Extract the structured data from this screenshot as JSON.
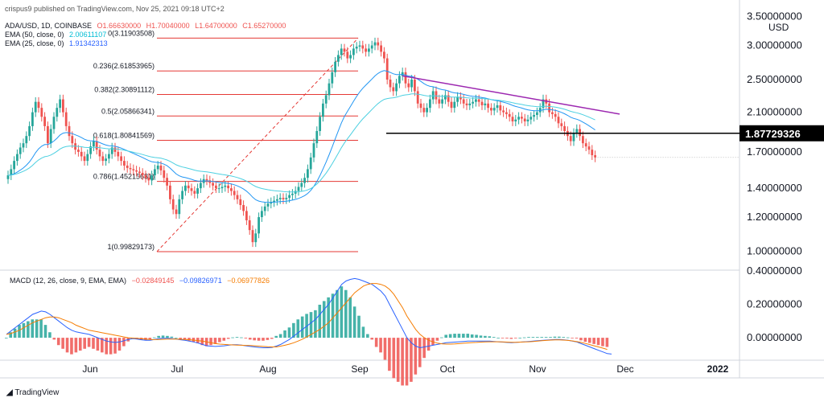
{
  "header": {
    "published": "crispus9 published on TradingView.com, Nov 25, 2021 09:18 UTC+2",
    "symbol": "ADA/USD, 1D, COINBASE",
    "ohlc": {
      "o": "O1.66630000",
      "h": "H1.70040000",
      "l": "L1.64700000",
      "c": "C1.65270000"
    },
    "ema50": {
      "label": "EMA (50, close, 0)",
      "value": "2.00611107"
    },
    "ema25": {
      "label": "EMA (25, close, 0)",
      "value": "1.91342313"
    },
    "macd": {
      "label": "MACD (12, 26, close, 9, EMA, EMA)",
      "hist": "−0.02849145",
      "macd": "−0.09826971",
      "signal": "−0.06977826"
    }
  },
  "footer": {
    "brand": "TradingView"
  },
  "colors": {
    "up": "#26a69a",
    "down": "#ef5350",
    "fib": "#e53935",
    "ema25": "#2196f3",
    "ema50": "#4dd0e1",
    "trend": "#9c27b0",
    "macd": "#2962ff",
    "signal": "#f57c00",
    "hist_up": "#26a69a",
    "hist_down": "#ef5350"
  },
  "chart_data": {
    "type": "candlestick",
    "currency_label": "USD",
    "price_axis": {
      "ticks": [
        "3.50000000",
        "3.00000000",
        "2.50000000",
        "2.10000000",
        "1.70000000",
        "1.40000000",
        "1.20000000",
        "1.00000000"
      ],
      "scale": "log",
      "range": [
        0.92,
        3.6
      ],
      "highlight": "1.87729326"
    },
    "time_axis": {
      "ticks": [
        "Jun",
        "Jul",
        "Aug",
        "Sep",
        "Oct",
        "Nov",
        "Dec",
        "2022"
      ]
    },
    "fibonacci": [
      {
        "label": "0(3.11903508)",
        "value": 3.11903508
      },
      {
        "label": "0.236(2.61853965)",
        "value": 2.61853965
      },
      {
        "label": "0.382(2.30891112)",
        "value": 2.30891112
      },
      {
        "label": "0.5(2.05866341)",
        "value": 2.05866341
      },
      {
        "label": "0.618(1.80841569)",
        "value": 1.80841569
      },
      {
        "label": "0.786(1.45215681)",
        "value": 1.45215681
      },
      {
        "label": "1(0.99829173)",
        "value": 0.99829173
      }
    ],
    "support_level": 1.87729326,
    "macd_axis": {
      "ticks": [
        "0.40000000",
        "0.20000000",
        "0.00000000"
      ],
      "range": [
        -0.12,
        0.41
      ]
    },
    "closes": [
      1.5,
      1.55,
      1.62,
      1.68,
      1.74,
      1.78,
      1.85,
      1.95,
      2.1,
      2.22,
      2.15,
      2.05,
      1.95,
      1.78,
      1.92,
      2.05,
      2.15,
      2.25,
      2.1,
      1.95,
      1.85,
      1.78,
      1.72,
      1.7,
      1.66,
      1.62,
      1.68,
      1.75,
      1.8,
      1.72,
      1.66,
      1.62,
      1.64,
      1.68,
      1.74,
      1.7,
      1.66,
      1.62,
      1.58,
      1.56,
      1.55,
      1.54,
      1.53,
      1.52,
      1.5,
      1.48,
      1.46,
      1.5,
      1.55,
      1.58,
      1.54,
      1.48,
      1.42,
      1.32,
      1.25,
      1.22,
      1.32,
      1.38,
      1.42,
      1.4,
      1.38,
      1.36,
      1.4,
      1.44,
      1.47,
      1.46,
      1.44,
      1.42,
      1.4,
      1.4,
      1.41,
      1.42,
      1.4,
      1.38,
      1.35,
      1.32,
      1.28,
      1.24,
      1.18,
      1.12,
      1.05,
      1.1,
      1.2,
      1.24,
      1.27,
      1.29,
      1.3,
      1.31,
      1.32,
      1.33,
      1.32,
      1.33,
      1.35,
      1.36,
      1.38,
      1.41,
      1.44,
      1.48,
      1.55,
      1.65,
      1.78,
      1.9,
      2.05,
      2.2,
      2.3,
      2.45,
      2.6,
      2.75,
      2.85,
      2.95,
      2.9,
      2.8,
      2.85,
      2.95,
      2.98,
      3.0,
      2.95,
      2.9,
      2.95,
      3.0,
      3.05,
      3.0,
      2.9,
      2.8,
      2.5,
      2.4,
      2.35,
      2.45,
      2.55,
      2.6,
      2.45,
      2.4,
      2.5,
      2.35,
      2.2,
      2.15,
      2.1,
      2.15,
      2.25,
      2.35,
      2.25,
      2.2,
      2.25,
      2.3,
      2.22,
      2.15,
      2.22,
      2.28,
      2.25,
      2.2,
      2.18,
      2.2,
      2.22,
      2.25,
      2.22,
      2.18,
      2.2,
      2.15,
      2.12,
      2.15,
      2.18,
      2.12,
      2.1,
      2.08,
      2.05,
      2.0,
      2.02,
      2.05,
      2.03,
      2.0,
      2.02,
      2.05,
      2.07,
      2.1,
      2.15,
      2.25,
      2.2,
      2.1,
      2.08,
      2.05,
      1.98,
      1.95,
      1.9,
      1.85,
      1.8,
      1.88,
      1.92,
      1.85,
      1.78,
      1.75,
      1.72,
      1.67,
      1.65
    ],
    "macd_values": [
      0.02,
      0.04,
      0.06,
      0.08,
      0.1,
      0.12,
      0.14,
      0.15,
      0.16,
      0.155,
      0.14,
      0.12,
      0.1,
      0.08,
      0.06,
      0.045,
      0.035,
      0.03,
      0.025,
      0.02,
      0.01,
      0.0,
      -0.01,
      -0.02,
      -0.025,
      -0.028,
      -0.025,
      -0.018,
      -0.01,
      -0.005,
      -0.008,
      -0.012,
      -0.015,
      -0.015,
      -0.01,
      -0.005,
      -0.003,
      -0.003,
      -0.005,
      -0.008,
      -0.012,
      -0.015,
      -0.02,
      -0.025,
      -0.032,
      -0.04,
      -0.048,
      -0.05,
      -0.052,
      -0.05,
      -0.048,
      -0.045,
      -0.042,
      -0.042,
      -0.044,
      -0.048,
      -0.052,
      -0.055,
      -0.058,
      -0.06,
      -0.06,
      -0.058,
      -0.05,
      -0.04,
      -0.025,
      -0.01,
      0.01,
      0.03,
      0.05,
      0.07,
      0.09,
      0.11,
      0.14,
      0.17,
      0.2,
      0.24,
      0.28,
      0.32,
      0.34,
      0.35,
      0.355,
      0.35,
      0.34,
      0.33,
      0.32,
      0.3,
      0.28,
      0.25,
      0.2,
      0.15,
      0.1,
      0.05,
      0.0,
      -0.03,
      -0.05,
      -0.06,
      -0.055,
      -0.05,
      -0.045,
      -0.04,
      -0.035,
      -0.03,
      -0.028,
      -0.026,
      -0.024,
      -0.022,
      -0.02,
      -0.02,
      -0.02,
      -0.02,
      -0.02,
      -0.02,
      -0.022,
      -0.024,
      -0.026,
      -0.028,
      -0.03,
      -0.028,
      -0.026,
      -0.024,
      -0.022,
      -0.02,
      -0.018,
      -0.016,
      -0.014,
      -0.012,
      -0.01,
      -0.01,
      -0.012,
      -0.015,
      -0.02,
      -0.025,
      -0.035,
      -0.045,
      -0.055,
      -0.065,
      -0.075,
      -0.085,
      -0.095,
      -0.098
    ],
    "signal_values": [
      0.02,
      0.025,
      0.035,
      0.045,
      0.06,
      0.075,
      0.09,
      0.1,
      0.11,
      0.12,
      0.125,
      0.125,
      0.12,
      0.11,
      0.1,
      0.09,
      0.075,
      0.065,
      0.055,
      0.045,
      0.04,
      0.035,
      0.03,
      0.025,
      0.02,
      0.015,
      0.01,
      0.005,
      0.0,
      -0.002,
      -0.004,
      -0.006,
      -0.008,
      -0.01,
      -0.011,
      -0.01,
      -0.009,
      -0.008,
      -0.008,
      -0.008,
      -0.009,
      -0.01,
      -0.012,
      -0.014,
      -0.017,
      -0.02,
      -0.025,
      -0.03,
      -0.035,
      -0.038,
      -0.04,
      -0.042,
      -0.043,
      -0.044,
      -0.045,
      -0.046,
      -0.047,
      -0.048,
      -0.05,
      -0.052,
      -0.054,
      -0.055,
      -0.055,
      -0.05,
      -0.045,
      -0.038,
      -0.03,
      -0.02,
      -0.008,
      0.005,
      0.02,
      0.035,
      0.05,
      0.07,
      0.09,
      0.12,
      0.15,
      0.18,
      0.21,
      0.24,
      0.27,
      0.29,
      0.31,
      0.32,
      0.325,
      0.325,
      0.32,
      0.31,
      0.29,
      0.26,
      0.22,
      0.18,
      0.13,
      0.09,
      0.05,
      0.02,
      0.0,
      -0.015,
      -0.025,
      -0.032,
      -0.036,
      -0.038,
      -0.038,
      -0.037,
      -0.035,
      -0.033,
      -0.031,
      -0.029,
      -0.028,
      -0.026,
      -0.025,
      -0.024,
      -0.024,
      -0.024,
      -0.025,
      -0.026,
      -0.027,
      -0.027,
      -0.026,
      -0.025,
      -0.024,
      -0.022,
      -0.02,
      -0.018,
      -0.016,
      -0.014,
      -0.013,
      -0.013,
      -0.014,
      -0.016,
      -0.019,
      -0.023,
      -0.028,
      -0.034,
      -0.041,
      -0.048,
      -0.055,
      -0.062,
      -0.07
    ]
  }
}
